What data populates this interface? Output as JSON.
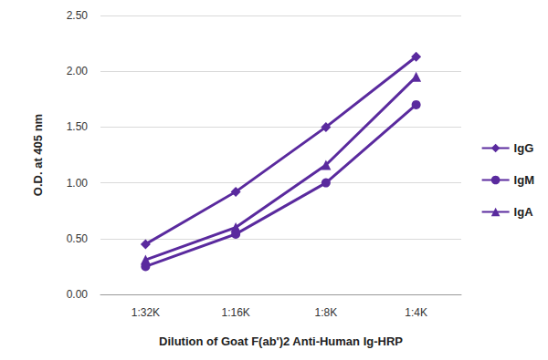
{
  "chart_data": {
    "type": "line",
    "x_label": "Dilution of Goat F(ab')2 Anti-Human Ig-HRP",
    "y_label": "O.D. at 405 nm",
    "categories": [
      "1:32K",
      "1:16K",
      "1:8K",
      "1:4K"
    ],
    "series": [
      {
        "name": "IgG",
        "color": "#5a2a9e",
        "marker": "diamond",
        "values": [
          0.45,
          0.92,
          1.5,
          2.13
        ]
      },
      {
        "name": "IgM",
        "color": "#5a2a9e",
        "marker": "circle",
        "values": [
          0.25,
          0.54,
          1.0,
          1.7
        ]
      },
      {
        "name": "IgA",
        "color": "#5a2a9e",
        "marker": "triangle",
        "values": [
          0.31,
          0.6,
          1.16,
          1.95
        ]
      }
    ],
    "ylim": [
      0,
      2.5
    ],
    "yticks": [
      {
        "value": 0,
        "label": "0.00"
      },
      {
        "value": 0.5,
        "label": "0.50"
      },
      {
        "value": 1,
        "label": "1.00"
      },
      {
        "value": 1.5,
        "label": "1.50"
      },
      {
        "value": 2,
        "label": "2.00"
      },
      {
        "value": 2.5,
        "label": "2.50"
      }
    ],
    "grid": true,
    "legend": "right"
  }
}
